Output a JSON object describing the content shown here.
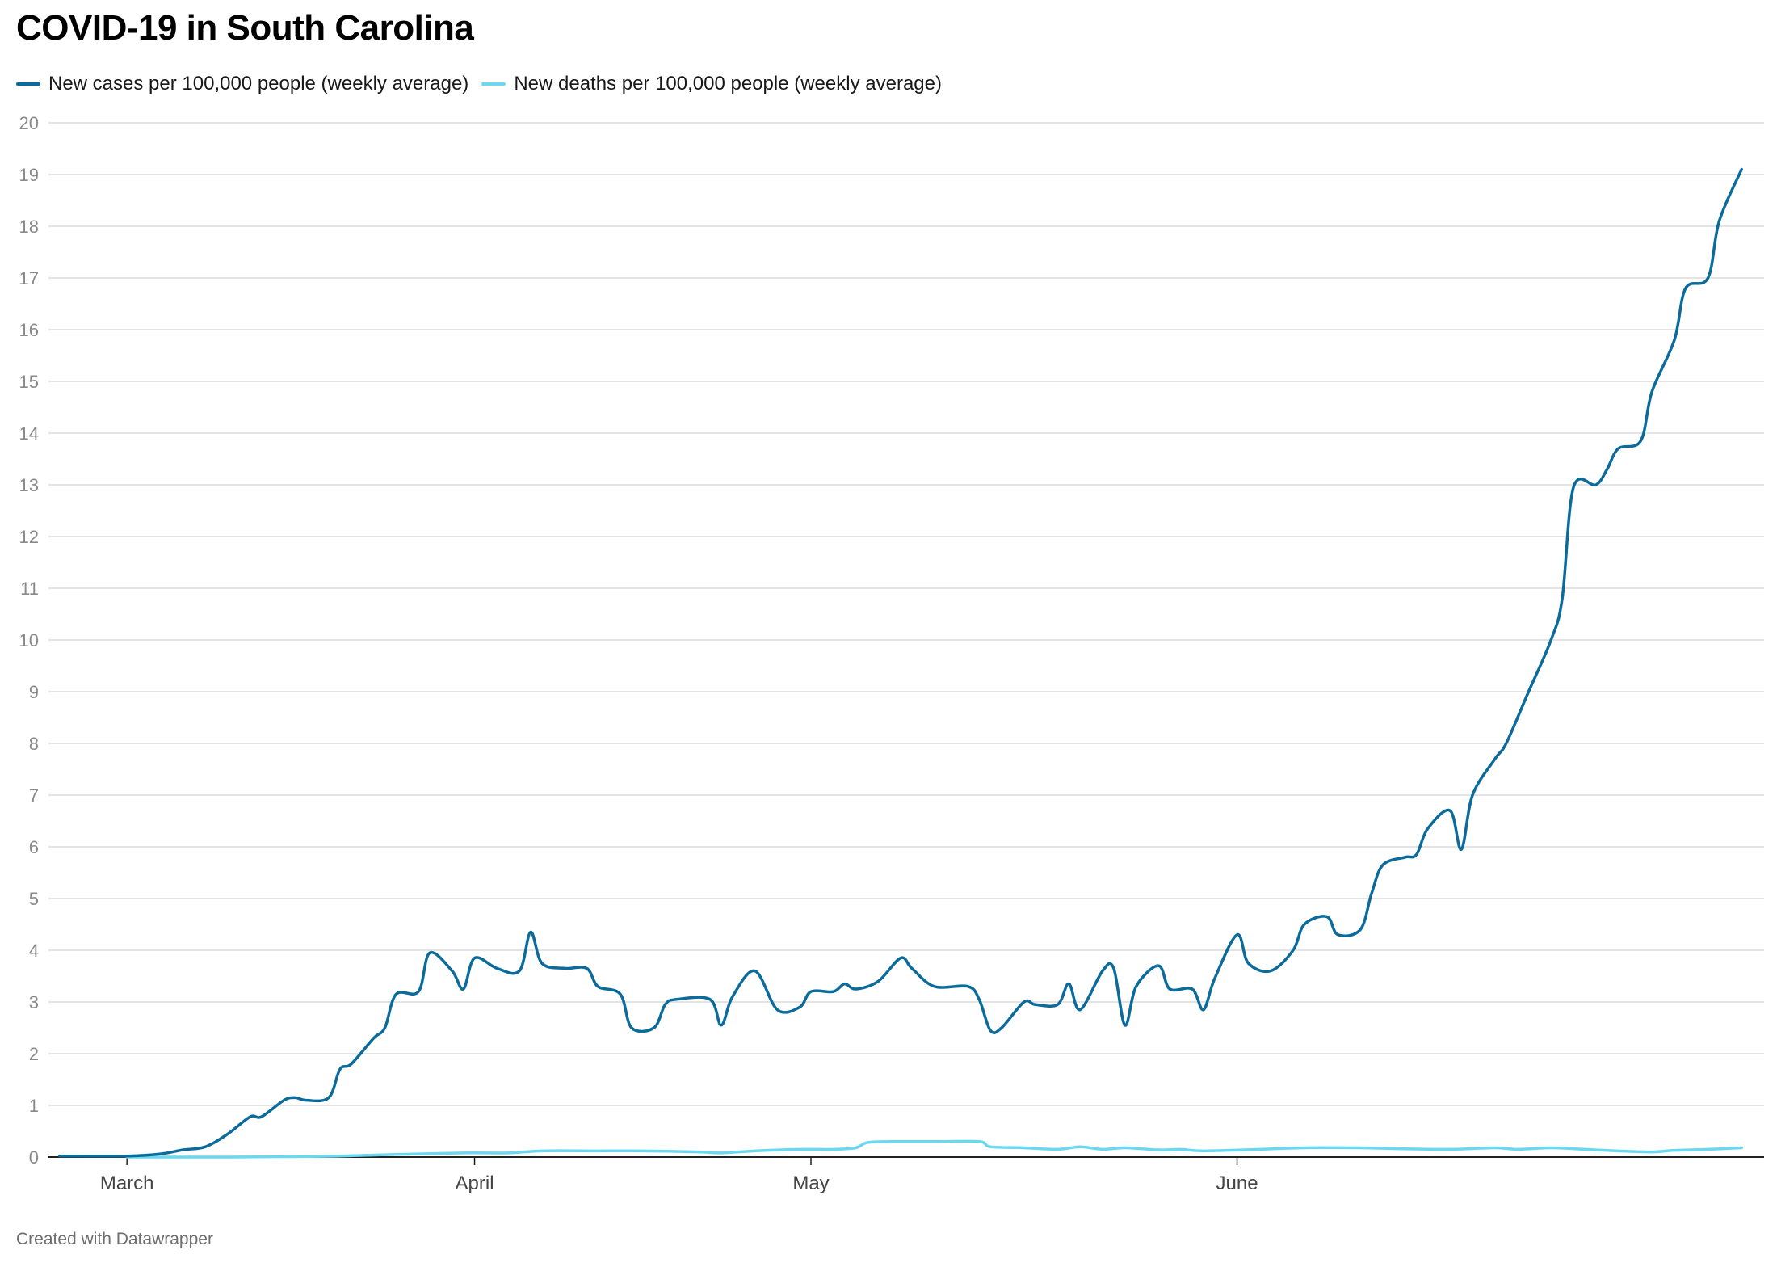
{
  "title": "COVID-19 in South Carolina",
  "footer": "Created with Datawrapper",
  "colors": {
    "cases": "#0b6b9a",
    "deaths": "#6bd8ef",
    "grid": "#dcdcdc",
    "axis": "#222222",
    "ticklabel": "#8a8a8a"
  },
  "chart_data": {
    "type": "line",
    "title": "COVID-19 in South Carolina",
    "xlabel": "",
    "ylabel": "",
    "ylim": [
      0,
      20
    ],
    "grid": true,
    "legend": "top-left",
    "y_ticks": [
      "0",
      "1",
      "2",
      "3",
      "4",
      "5",
      "6",
      "7",
      "8",
      "9",
      "10",
      "11",
      "12",
      "13",
      "14",
      "15",
      "16",
      "17",
      "18",
      "19",
      "20"
    ],
    "x_ticks": [
      {
        "label": "March",
        "date": "2020-03-01"
      },
      {
        "label": "April",
        "date": "2020-04-01"
      },
      {
        "label": "May",
        "date": "2020-05-01"
      },
      {
        "label": "June",
        "date": "2020-06-08"
      }
    ],
    "series": [
      {
        "name": "New cases per 100,000 people (weekly average)",
        "points": [
          [
            "2020-02-24",
            0.02
          ],
          [
            "2020-03-01",
            0.02
          ],
          [
            "2020-03-04",
            0.06
          ],
          [
            "2020-03-06",
            0.14
          ],
          [
            "2020-03-08",
            0.2
          ],
          [
            "2020-03-10",
            0.45
          ],
          [
            "2020-03-12",
            0.78
          ],
          [
            "2020-03-13",
            0.78
          ],
          [
            "2020-03-15",
            1.1
          ],
          [
            "2020-03-16",
            1.15
          ],
          [
            "2020-03-17",
            1.1
          ],
          [
            "2020-03-19",
            1.15
          ],
          [
            "2020-03-20",
            1.7
          ],
          [
            "2020-03-21",
            1.8
          ],
          [
            "2020-03-23",
            2.3
          ],
          [
            "2020-03-24",
            2.5
          ],
          [
            "2020-03-25",
            3.15
          ],
          [
            "2020-03-27",
            3.2
          ],
          [
            "2020-03-28",
            3.95
          ],
          [
            "2020-03-30",
            3.6
          ],
          [
            "2020-03-31",
            3.25
          ],
          [
            "2020-04-01",
            3.85
          ],
          [
            "2020-04-03",
            3.65
          ],
          [
            "2020-04-05",
            3.6
          ],
          [
            "2020-04-06",
            4.35
          ],
          [
            "2020-04-07",
            3.75
          ],
          [
            "2020-04-09",
            3.65
          ],
          [
            "2020-04-11",
            3.65
          ],
          [
            "2020-04-12",
            3.3
          ],
          [
            "2020-04-14",
            3.15
          ],
          [
            "2020-04-15",
            2.5
          ],
          [
            "2020-04-17",
            2.5
          ],
          [
            "2020-04-18",
            2.95
          ],
          [
            "2020-04-19",
            3.05
          ],
          [
            "2020-04-22",
            3.05
          ],
          [
            "2020-04-23",
            2.55
          ],
          [
            "2020-04-24",
            3.1
          ],
          [
            "2020-04-26",
            3.6
          ],
          [
            "2020-04-28",
            2.85
          ],
          [
            "2020-04-30",
            2.9
          ],
          [
            "2020-05-01",
            3.2
          ],
          [
            "2020-05-03",
            3.2
          ],
          [
            "2020-05-04",
            3.35
          ],
          [
            "2020-05-05",
            3.25
          ],
          [
            "2020-05-07",
            3.4
          ],
          [
            "2020-05-09",
            3.85
          ],
          [
            "2020-05-10",
            3.65
          ],
          [
            "2020-05-12",
            3.3
          ],
          [
            "2020-05-15",
            3.3
          ],
          [
            "2020-05-16",
            3.05
          ],
          [
            "2020-05-17",
            2.45
          ],
          [
            "2020-05-18",
            2.5
          ],
          [
            "2020-05-20",
            3.0
          ],
          [
            "2020-05-21",
            2.95
          ],
          [
            "2020-05-23",
            2.95
          ],
          [
            "2020-05-24",
            3.35
          ],
          [
            "2020-05-25",
            2.85
          ],
          [
            "2020-05-27",
            3.6
          ],
          [
            "2020-05-28",
            3.65
          ],
          [
            "2020-05-29",
            2.55
          ],
          [
            "2020-05-30",
            3.3
          ],
          [
            "2020-06-01",
            3.7
          ],
          [
            "2020-06-02",
            3.25
          ],
          [
            "2020-06-04",
            3.25
          ],
          [
            "2020-06-05",
            2.85
          ],
          [
            "2020-06-06",
            3.45
          ],
          [
            "2020-06-08",
            4.3
          ],
          [
            "2020-06-09",
            3.75
          ],
          [
            "2020-06-11",
            3.6
          ],
          [
            "2020-06-13",
            4.0
          ],
          [
            "2020-06-14",
            4.5
          ],
          [
            "2020-06-16",
            4.65
          ],
          [
            "2020-06-17",
            4.3
          ],
          [
            "2020-06-19",
            4.4
          ],
          [
            "2020-06-20",
            5.1
          ],
          [
            "2020-06-21",
            5.65
          ],
          [
            "2020-06-23",
            5.8
          ],
          [
            "2020-06-24",
            5.85
          ],
          [
            "2020-06-25",
            6.35
          ],
          [
            "2020-06-27",
            6.7
          ],
          [
            "2020-06-28",
            5.95
          ],
          [
            "2020-06-29",
            7.0
          ],
          [
            "2020-07-01",
            7.7
          ],
          [
            "2020-07-02",
            8.0
          ],
          [
            "2020-07-04",
            9.0
          ],
          [
            "2020-07-06",
            10.0
          ],
          [
            "2020-07-07",
            10.8
          ],
          [
            "2020-07-08",
            12.95
          ],
          [
            "2020-07-10",
            13.0
          ],
          [
            "2020-07-11",
            13.3
          ],
          [
            "2020-07-12",
            13.7
          ],
          [
            "2020-07-14",
            13.85
          ],
          [
            "2020-07-15",
            14.8
          ],
          [
            "2020-07-17",
            15.8
          ],
          [
            "2020-07-18",
            16.8
          ],
          [
            "2020-07-20",
            17.0
          ],
          [
            "2020-07-21",
            18.1
          ],
          [
            "2020-07-23",
            19.1
          ]
        ]
      },
      {
        "name": "New deaths per 100,000 people (weekly average)",
        "points": [
          [
            "2020-03-01",
            0.0
          ],
          [
            "2020-03-10",
            0.0
          ],
          [
            "2020-03-16",
            0.01
          ],
          [
            "2020-03-20",
            0.02
          ],
          [
            "2020-03-25",
            0.05
          ],
          [
            "2020-03-31",
            0.08
          ],
          [
            "2020-04-04",
            0.08
          ],
          [
            "2020-04-07",
            0.12
          ],
          [
            "2020-04-12",
            0.12
          ],
          [
            "2020-04-16",
            0.12
          ],
          [
            "2020-04-21",
            0.1
          ],
          [
            "2020-04-23",
            0.08
          ],
          [
            "2020-04-26",
            0.12
          ],
          [
            "2020-04-30",
            0.15
          ],
          [
            "2020-05-03",
            0.15
          ],
          [
            "2020-05-05",
            0.18
          ],
          [
            "2020-05-06",
            0.28
          ],
          [
            "2020-05-08",
            0.3
          ],
          [
            "2020-05-12",
            0.3
          ],
          [
            "2020-05-16",
            0.3
          ],
          [
            "2020-05-17",
            0.2
          ],
          [
            "2020-05-20",
            0.18
          ],
          [
            "2020-05-23",
            0.15
          ],
          [
            "2020-05-25",
            0.2
          ],
          [
            "2020-05-27",
            0.15
          ],
          [
            "2020-05-29",
            0.18
          ],
          [
            "2020-06-01",
            0.14
          ],
          [
            "2020-06-03",
            0.15
          ],
          [
            "2020-06-05",
            0.12
          ],
          [
            "2020-06-10",
            0.15
          ],
          [
            "2020-06-14",
            0.18
          ],
          [
            "2020-06-19",
            0.18
          ],
          [
            "2020-06-23",
            0.16
          ],
          [
            "2020-06-27",
            0.15
          ],
          [
            "2020-07-01",
            0.18
          ],
          [
            "2020-07-03",
            0.15
          ],
          [
            "2020-07-06",
            0.18
          ],
          [
            "2020-07-09",
            0.15
          ],
          [
            "2020-07-12",
            0.12
          ],
          [
            "2020-07-15",
            0.1
          ],
          [
            "2020-07-17",
            0.13
          ],
          [
            "2020-07-20",
            0.15
          ],
          [
            "2020-07-23",
            0.18
          ]
        ]
      }
    ]
  }
}
